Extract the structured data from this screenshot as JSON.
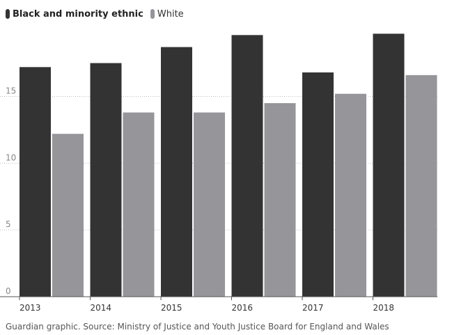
{
  "colors": {
    "bme": "#333333",
    "white": "#969599",
    "grid": "#bdbdbd",
    "axis": "#555555",
    "tick_text": "#888888"
  },
  "legend": [
    {
      "name": "Black and minority ethnic",
      "color": "#333333"
    },
    {
      "name": "White",
      "color": "#969599"
    }
  ],
  "footer": "Guardian graphic. Source: Ministry of Justice and Youth Justice Board for England and Wales",
  "chart_data": {
    "type": "bar",
    "categories": [
      "2013",
      "2014",
      "2015",
      "2016",
      "2017",
      "2018"
    ],
    "series": [
      {
        "name": "Black and minority ethnic",
        "values": [
          17.2,
          17.5,
          18.7,
          19.6,
          16.8,
          19.7
        ]
      },
      {
        "name": "White",
        "values": [
          12.2,
          13.8,
          13.8,
          14.5,
          15.2,
          16.6
        ]
      }
    ],
    "yticks": [
      0,
      5,
      10,
      15
    ],
    "ylim": [
      0,
      20.4
    ],
    "grid": true,
    "legend_position": "top-left"
  }
}
